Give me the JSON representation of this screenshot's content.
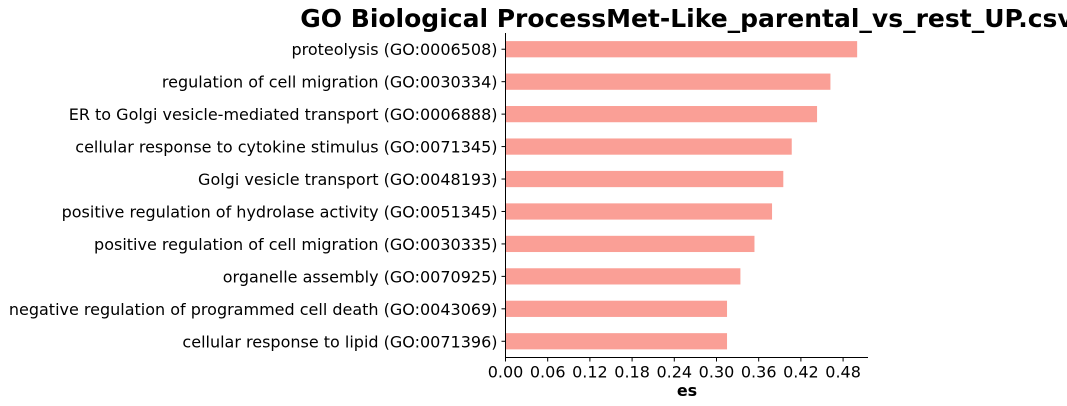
{
  "chart_data": {
    "type": "bar",
    "orientation": "horizontal",
    "title": "GO Biological ProcessMet-Like_parental_vs_rest_UP.csv",
    "xlabel": "es",
    "ylabel": "",
    "categories": [
      "proteolysis (GO:0006508)",
      "regulation of cell migration (GO:0030334)",
      "ER to Golgi vesicle-mediated transport (GO:0006888)",
      "cellular response to cytokine stimulus (GO:0071345)",
      "Golgi vesicle transport (GO:0048193)",
      "positive regulation of hydrolase activity (GO:0051345)",
      "positive regulation of cell migration (GO:0030335)",
      "organelle assembly (GO:0070925)",
      "negative regulation of programmed cell death (GO:0043069)",
      "cellular response to lipid (GO:0071396)"
    ],
    "values": [
      0.5,
      0.462,
      0.443,
      0.407,
      0.395,
      0.379,
      0.354,
      0.334,
      0.315,
      0.315
    ],
    "xlim": [
      0,
      0.528
    ],
    "xticks": [
      "0.00",
      "0.06",
      "0.12",
      "0.18",
      "0.24",
      "0.30",
      "0.36",
      "0.42",
      "0.48"
    ],
    "bar_color": "#FA9F96",
    "grid": false,
    "legend": "none"
  }
}
